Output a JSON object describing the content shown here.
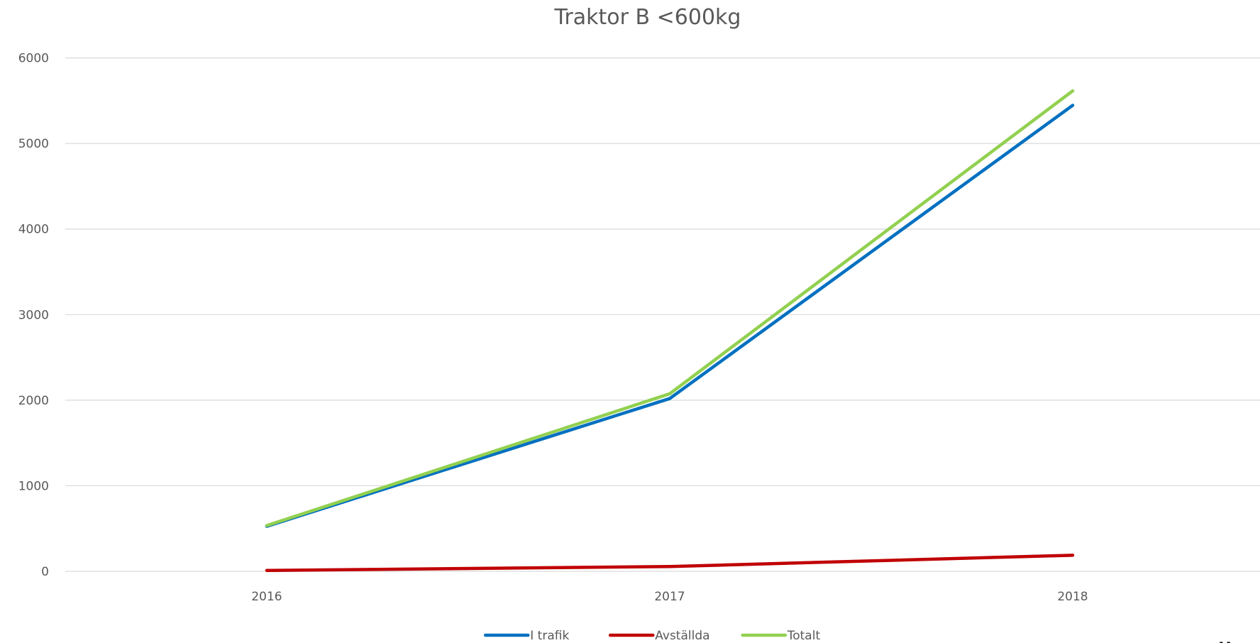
{
  "chart_data": {
    "type": "line",
    "title": "Traktor B <600kg",
    "categories": [
      "2016",
      "2017",
      "2018"
    ],
    "series": [
      {
        "name": "I trafik",
        "color": "#0070c0",
        "values": [
          526,
          2019,
          5446
        ]
      },
      {
        "name": "Avställda",
        "color": "#c00000",
        "values": [
          10,
          56,
          188
        ]
      },
      {
        "name": "Totalt",
        "color": "#92d050",
        "values": [
          535,
          2075,
          5615
        ]
      }
    ],
    "ylim": [
      0,
      6000
    ],
    "yticks": [
      0,
      1000,
      2000,
      3000,
      4000,
      5000,
      6000
    ],
    "grid": true,
    "legend": "bottom",
    "annotation": "Källa"
  }
}
